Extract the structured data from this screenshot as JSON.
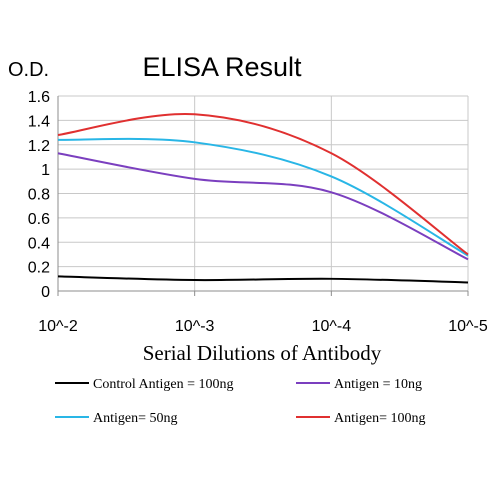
{
  "chart_data": {
    "type": "line",
    "title": "ELISA Result",
    "ylabel": "O.D.",
    "xlabel": "Serial Dilutions of Antibody",
    "ylim": [
      0,
      1.6
    ],
    "yticks": [
      "0",
      "0.2",
      "0.4",
      "0.6",
      "0.8",
      "1",
      "1.2",
      "1.4",
      "1.6"
    ],
    "categories": [
      "10^-2",
      "10^-3",
      "10^-4",
      "10^-5"
    ],
    "grid": true,
    "legend_position": "bottom",
    "series": [
      {
        "name": "Control Antigen = 100ng",
        "color": "#000000",
        "values": [
          0.12,
          0.09,
          0.1,
          0.07
        ]
      },
      {
        "name": "Antigen = 10ng",
        "color": "#7b3fbf",
        "values": [
          1.13,
          0.92,
          0.81,
          0.26
        ]
      },
      {
        "name": "Antigen= 50ng",
        "color": "#29b6e6",
        "values": [
          1.24,
          1.22,
          0.94,
          0.29
        ]
      },
      {
        "name": "Antigen= 100ng",
        "color": "#e03030",
        "values": [
          1.28,
          1.45,
          1.13,
          0.3
        ]
      }
    ]
  }
}
